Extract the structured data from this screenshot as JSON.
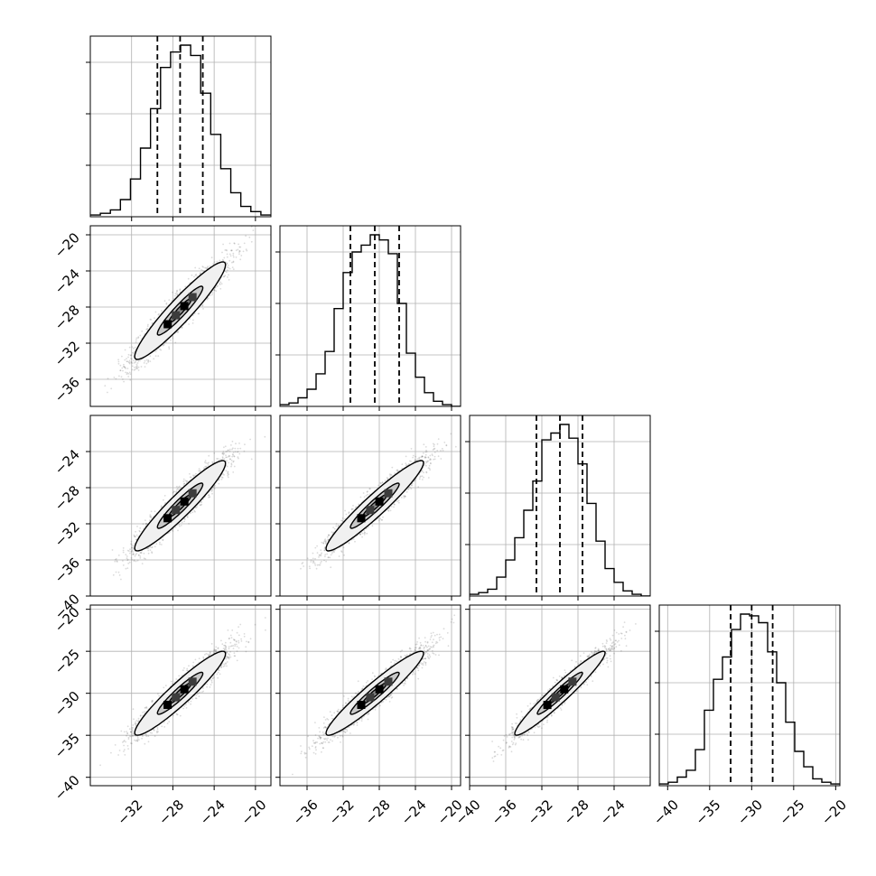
{
  "chart_data": {
    "type": "corner",
    "n_params": 4,
    "grid": true,
    "colors": {
      "axes": "#000000",
      "grid": "#b0b0b0",
      "points": "#5a5a5a",
      "contour_outer": "#f0f0f0",
      "contour_mid": "#c8c8c8",
      "contour_inner": "#8c8c8c",
      "peak": "#000000"
    },
    "params": [
      {
        "range": [
          -36,
          -18.5
        ],
        "median": -27.3,
        "q16": -29.5,
        "q84": -25.1,
        "ticks": [
          -32,
          -28,
          -24,
          -20
        ],
        "tick_labels": [
          "−32",
          "−28",
          "−24",
          "−20"
        ],
        "hist": [
          1,
          2,
          4,
          10,
          22,
          40,
          63,
          87,
          96,
          100,
          94,
          72,
          48,
          28,
          14,
          6,
          3,
          1
        ]
      },
      {
        "range": [
          -39,
          -19
        ],
        "median": -28.5,
        "q16": -31.2,
        "q84": -25.8,
        "ticks": [
          -36,
          -32,
          -28,
          -24,
          -20
        ],
        "tick_labels": [
          "−36",
          "−32",
          "−28",
          "−24",
          "−20"
        ],
        "hist": [
          1,
          2,
          5,
          10,
          19,
          32,
          57,
          78,
          90,
          94,
          100,
          97,
          89,
          60,
          31,
          17,
          8,
          3,
          1,
          0
        ]
      },
      {
        "range": [
          -40,
          -20
        ],
        "median": -30.0,
        "q16": -32.6,
        "q84": -27.5,
        "ticks": [
          -40,
          -36,
          -32,
          -28,
          -24
        ],
        "tick_labels": [
          "−40",
          "−36",
          "−32",
          "−28",
          "−24"
        ],
        "hist": [
          1,
          2,
          4,
          11,
          21,
          34,
          50,
          67,
          91,
          95,
          100,
          92,
          77,
          54,
          32,
          16,
          8,
          3,
          1,
          0
        ]
      },
      {
        "range": [
          -41,
          -19.5
        ],
        "median": -30.0,
        "q16": -32.5,
        "q84": -27.5,
        "ticks": [
          -40,
          -35,
          -30,
          -25,
          -20
        ],
        "tick_labels": [
          "−40",
          "−35",
          "−30",
          "−25",
          "−20"
        ],
        "hist": [
          1,
          2,
          5,
          9,
          21,
          44,
          62,
          75,
          91,
          100,
          99,
          95,
          78,
          60,
          37,
          20,
          11,
          4,
          2,
          1
        ]
      }
    ],
    "pairs": [
      {
        "row": 1,
        "col": 0,
        "mean": [
          -27.3,
          -28.4
        ],
        "sd": [
          2.2,
          2.7
        ],
        "rho": 0.94
      },
      {
        "row": 2,
        "col": 0,
        "mean": [
          -27.3,
          -30.0
        ],
        "sd": [
          2.2,
          2.5
        ],
        "rho": 0.94
      },
      {
        "row": 2,
        "col": 1,
        "mean": [
          -28.5,
          -30.0
        ],
        "sd": [
          2.7,
          2.5
        ],
        "rho": 0.95
      },
      {
        "row": 3,
        "col": 0,
        "mean": [
          -27.3,
          -30.0
        ],
        "sd": [
          2.2,
          2.5
        ],
        "rho": 0.94
      },
      {
        "row": 3,
        "col": 1,
        "mean": [
          -28.5,
          -30.0
        ],
        "sd": [
          2.7,
          2.5
        ],
        "rho": 0.95
      },
      {
        "row": 3,
        "col": 2,
        "mean": [
          -30.0,
          -30.0
        ],
        "sd": [
          2.5,
          2.5
        ],
        "rho": 0.96
      }
    ]
  }
}
